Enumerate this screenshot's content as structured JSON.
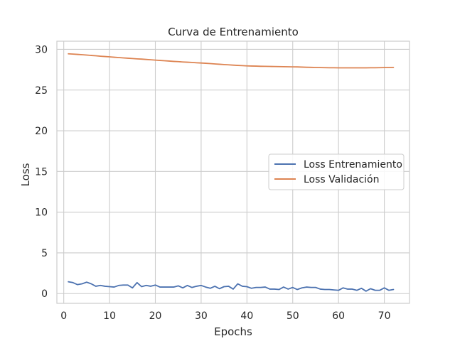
{
  "chart_data": {
    "type": "line",
    "title": "Curva de Entrenamiento",
    "xlabel": "Epochs",
    "ylabel": "Loss",
    "xlim": [
      -1.5,
      75.5
    ],
    "ylim": [
      -1.2,
      31.0
    ],
    "xticks": [
      0,
      10,
      20,
      30,
      40,
      50,
      60,
      70
    ],
    "yticks": [
      0,
      5,
      10,
      15,
      20,
      25,
      30
    ],
    "grid": true,
    "legend_position": "center-right",
    "x": [
      1,
      2,
      3,
      4,
      5,
      6,
      7,
      8,
      9,
      10,
      11,
      12,
      13,
      14,
      15,
      16,
      17,
      18,
      19,
      20,
      21,
      22,
      23,
      24,
      25,
      26,
      27,
      28,
      29,
      30,
      31,
      32,
      33,
      34,
      35,
      36,
      37,
      38,
      39,
      40,
      41,
      42,
      43,
      44,
      45,
      46,
      47,
      48,
      49,
      50,
      51,
      52,
      53,
      54,
      55,
      56,
      57,
      58,
      59,
      60,
      61,
      62,
      63,
      64,
      65,
      66,
      67,
      68,
      69,
      70,
      71,
      72
    ],
    "series": [
      {
        "name": "Loss Entrenamiento",
        "color": "#4c72b0",
        "values": [
          1.45,
          1.35,
          1.1,
          1.2,
          1.4,
          1.2,
          0.9,
          1.0,
          0.9,
          0.85,
          0.8,
          1.0,
          1.05,
          1.05,
          0.7,
          1.35,
          0.85,
          1.0,
          0.9,
          1.05,
          0.8,
          0.8,
          0.8,
          0.8,
          0.95,
          0.7,
          1.0,
          0.75,
          0.9,
          1.0,
          0.8,
          0.65,
          0.9,
          0.6,
          0.85,
          0.9,
          0.55,
          1.2,
          0.9,
          0.85,
          0.65,
          0.75,
          0.75,
          0.8,
          0.55,
          0.55,
          0.5,
          0.8,
          0.55,
          0.75,
          0.5,
          0.7,
          0.8,
          0.75,
          0.75,
          0.55,
          0.5,
          0.5,
          0.45,
          0.4,
          0.7,
          0.55,
          0.55,
          0.4,
          0.65,
          0.3,
          0.6,
          0.4,
          0.4,
          0.7,
          0.4,
          0.5
        ]
      },
      {
        "name": "Loss Validación",
        "color": "#dd8452",
        "values": [
          29.45,
          29.42,
          29.38,
          29.34,
          29.3,
          29.25,
          29.21,
          29.16,
          29.12,
          29.08,
          29.03,
          28.99,
          28.95,
          28.91,
          28.87,
          28.83,
          28.8,
          28.76,
          28.72,
          28.68,
          28.64,
          28.6,
          28.56,
          28.52,
          28.49,
          28.45,
          28.42,
          28.39,
          28.35,
          28.32,
          28.29,
          28.25,
          28.21,
          28.17,
          28.13,
          28.1,
          28.06,
          28.03,
          28.0,
          27.97,
          27.95,
          27.94,
          27.92,
          27.91,
          27.9,
          27.89,
          27.88,
          27.87,
          27.86,
          27.85,
          27.84,
          27.82,
          27.8,
          27.79,
          27.77,
          27.76,
          27.75,
          27.74,
          27.74,
          27.73,
          27.73,
          27.73,
          27.73,
          27.73,
          27.73,
          27.73,
          27.74,
          27.74,
          27.75,
          27.76,
          27.77,
          27.78
        ]
      }
    ]
  }
}
